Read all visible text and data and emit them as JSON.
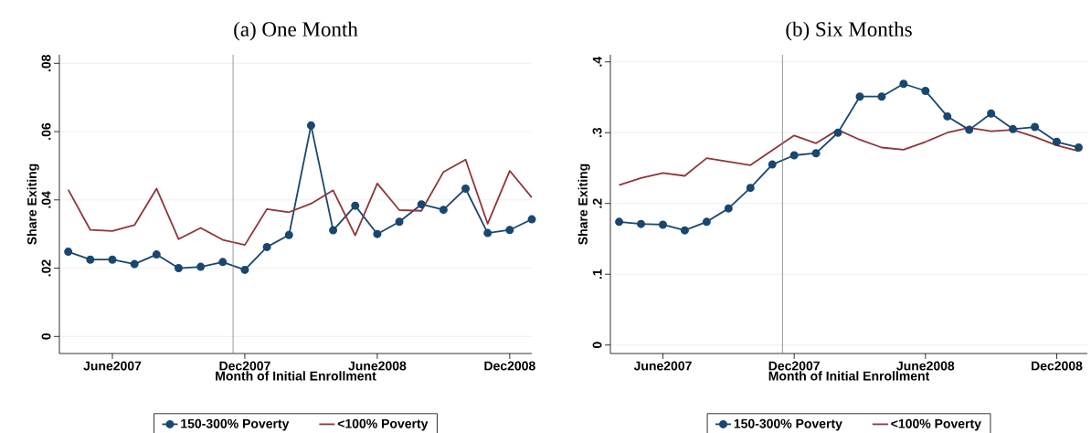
{
  "chart_data": [
    {
      "type": "line",
      "title": "(a) One Month",
      "xlabel": "Month of Initial Enrollment",
      "ylabel": "Share Exiting",
      "x": [
        "2007-04",
        "2007-05",
        "2007-06",
        "2007-07",
        "2007-08",
        "2007-09",
        "2007-10",
        "2007-11",
        "2007-12",
        "2008-01",
        "2008-02",
        "2008-03",
        "2008-04",
        "2008-05",
        "2008-06",
        "2008-07",
        "2008-08",
        "2008-09",
        "2008-10",
        "2008-11",
        "2008-12",
        "2009-01"
      ],
      "series": [
        {
          "name": "150-300% Poverty",
          "color": "#1a476f",
          "marker": "circle",
          "values": [
            0.0248,
            0.0225,
            0.0225,
            0.0212,
            0.024,
            0.02,
            0.0204,
            0.0218,
            0.0195,
            0.0262,
            0.0297,
            0.0618,
            0.0311,
            0.0383,
            0.03,
            0.0336,
            0.0387,
            0.0371,
            0.0433,
            0.0303,
            0.0312,
            0.0343
          ]
        },
        {
          "name": "<100% Poverty",
          "color": "#90353b",
          "marker": "none",
          "values": [
            0.043,
            0.0312,
            0.0309,
            0.0326,
            0.0433,
            0.0285,
            0.0318,
            0.0283,
            0.0268,
            0.0373,
            0.0364,
            0.0389,
            0.0428,
            0.0296,
            0.0448,
            0.037,
            0.0368,
            0.0482,
            0.0518,
            0.033,
            0.0485,
            0.0407
          ]
        }
      ],
      "xlim": [
        "2007-03-19",
        "2009-01-01"
      ],
      "xticks": [
        {
          "value": "2007-06",
          "label": "June2007"
        },
        {
          "value": "2007-12",
          "label": "Dec2007"
        },
        {
          "value": "2008-06",
          "label": "June2008"
        },
        {
          "value": "2008-12",
          "label": "Dec2008"
        }
      ],
      "ylim": [
        -0.005,
        0.0825
      ],
      "yticks": [
        {
          "value": 0,
          "label": "0"
        },
        {
          "value": 0.02,
          "label": ".02"
        },
        {
          "value": 0.04,
          "label": ".04"
        },
        {
          "value": 0.06,
          "label": ".06"
        },
        {
          "value": 0.08,
          "label": ".08"
        }
      ],
      "ref_lines": [
        {
          "axis": "x",
          "value": "2007-11-15",
          "color": "#808080"
        }
      ],
      "grid": "y",
      "legend": "bottom"
    },
    {
      "type": "line",
      "title": "(b) Six Months",
      "xlabel": "Month of Initial Enrollment",
      "ylabel": "Share Exiting",
      "x": [
        "2007-04",
        "2007-05",
        "2007-06",
        "2007-07",
        "2007-08",
        "2007-09",
        "2007-10",
        "2007-11",
        "2007-12",
        "2008-01",
        "2008-02",
        "2008-03",
        "2008-04",
        "2008-05",
        "2008-06",
        "2008-07",
        "2008-08",
        "2008-09",
        "2008-10",
        "2008-11",
        "2008-12",
        "2009-01"
      ],
      "series": [
        {
          "name": "150-300% Poverty",
          "color": "#1a476f",
          "marker": "circle",
          "values": [
            0.174,
            0.171,
            0.17,
            0.162,
            0.174,
            0.193,
            0.222,
            0.255,
            0.268,
            0.271,
            0.3,
            0.351,
            0.351,
            0.369,
            0.359,
            0.323,
            0.304,
            0.327,
            0.305,
            0.308,
            0.287,
            0.279
          ]
        },
        {
          "name": "<100% Poverty",
          "color": "#90353b",
          "marker": "none",
          "values": [
            0.226,
            0.236,
            0.243,
            0.239,
            0.264,
            0.259,
            0.254,
            0.275,
            0.296,
            0.285,
            0.304,
            0.29,
            0.279,
            0.276,
            0.287,
            0.3,
            0.307,
            0.302,
            0.304,
            0.294,
            0.282,
            0.274
          ]
        }
      ],
      "xlim": [
        "2007-03-19",
        "2009-01-13"
      ],
      "xticks": [
        {
          "value": "2007-06",
          "label": "June2007"
        },
        {
          "value": "2007-12",
          "label": "Dec2007"
        },
        {
          "value": "2008-06",
          "label": "June2008"
        },
        {
          "value": "2008-12",
          "label": "Dec2008"
        }
      ],
      "ylim": [
        -0.012,
        0.41
      ],
      "yticks": [
        {
          "value": 0,
          "label": "0"
        },
        {
          "value": 0.1,
          "label": ".1"
        },
        {
          "value": 0.2,
          "label": ".2"
        },
        {
          "value": 0.3,
          "label": ".3"
        },
        {
          "value": 0.4,
          "label": ".4"
        }
      ],
      "ref_lines": [
        {
          "axis": "x",
          "value": "2007-11-15",
          "color": "#808080"
        }
      ],
      "grid": "y",
      "legend": "bottom"
    }
  ]
}
